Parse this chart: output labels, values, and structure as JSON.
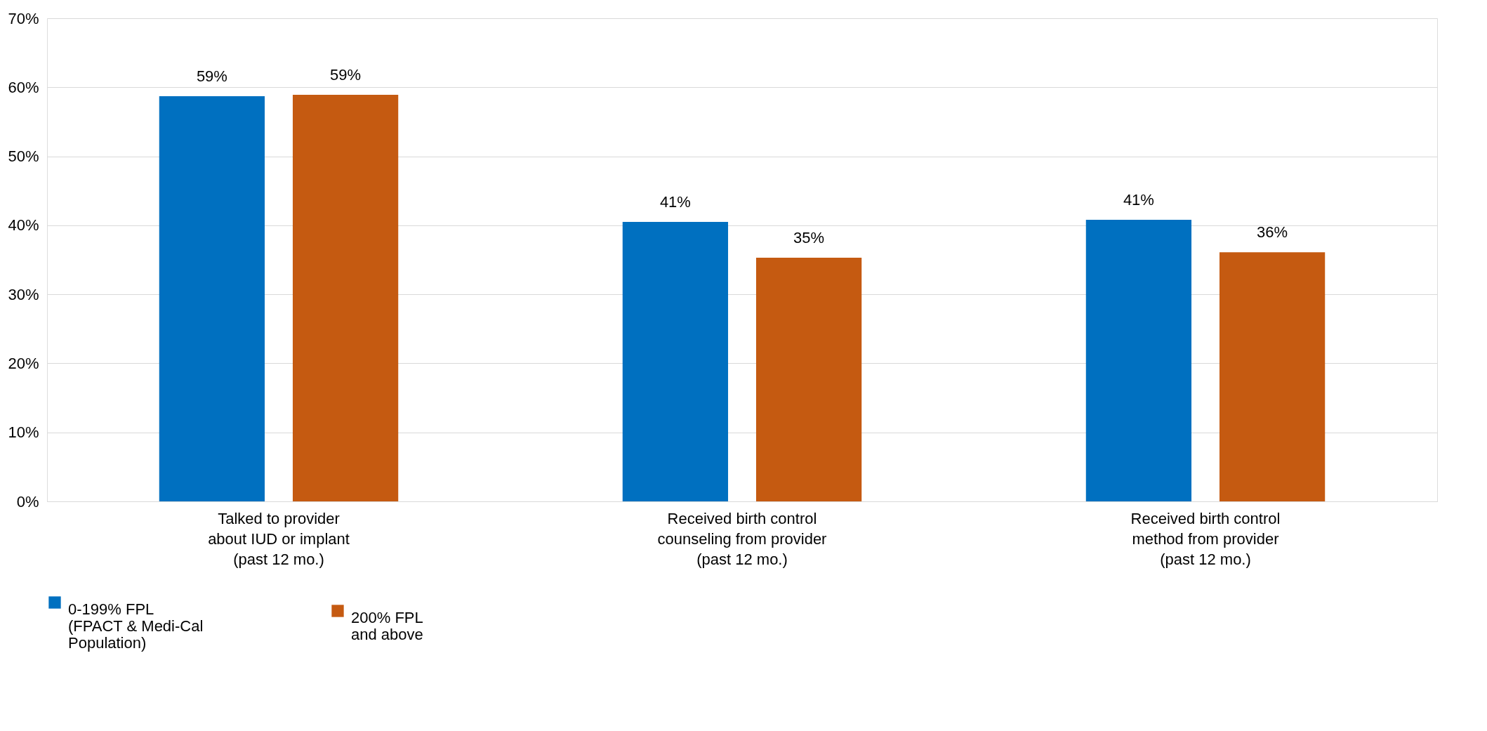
{
  "chart_data": {
    "type": "bar",
    "categories": [
      "Talked to provider\nabout IUD or implant\n(past 12 mo.)",
      "Received birth control\ncounseling from provider\n(past 12 mo.)",
      "Received birth control\nmethod from provider\n(past 12 mo.)"
    ],
    "series": [
      {
        "name": "0-199% FPL\n(FPACT & Medi-Cal\nPopulation)",
        "color": "#0070c0",
        "values": [
          58.7,
          40.5,
          40.8
        ],
        "value_labels": [
          "59%",
          "41%",
          "41%"
        ]
      },
      {
        "name": "200% FPL\nand above",
        "color": "#c55a11",
        "values": [
          58.9,
          35.3,
          36.1
        ],
        "value_labels": [
          "59%",
          "35%",
          "36%"
        ]
      }
    ],
    "ylim": [
      0,
      70
    ],
    "yticks": [
      {
        "value": 0,
        "label": "0%"
      },
      {
        "value": 10,
        "label": "10%"
      },
      {
        "value": 20,
        "label": "20%"
      },
      {
        "value": 30,
        "label": "30%"
      },
      {
        "value": 40,
        "label": "40%"
      },
      {
        "value": 50,
        "label": "50%"
      },
      {
        "value": 60,
        "label": "60%"
      },
      {
        "value": 70,
        "label": "70%"
      }
    ],
    "grid": "y",
    "legend": "bottom"
  }
}
